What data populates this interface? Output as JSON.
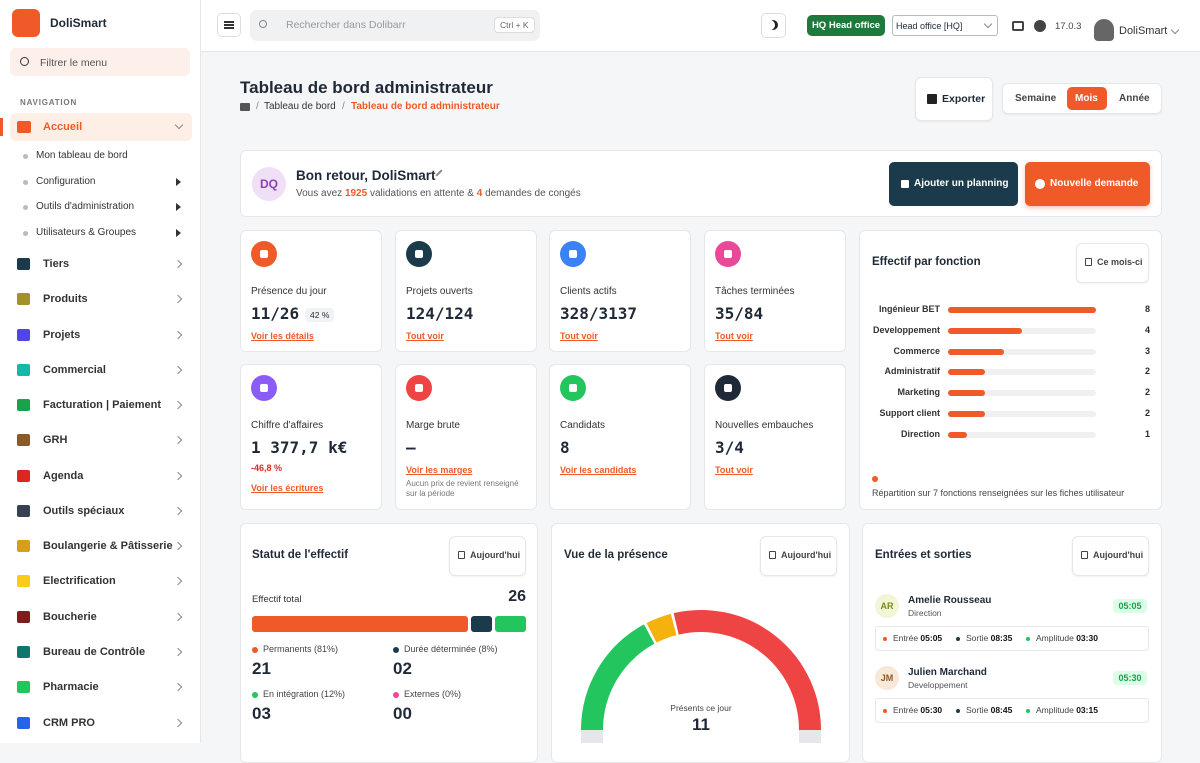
{
  "sidebar": {
    "brand": "DoliSmart",
    "filter_placeholder": "Filtrer le menu",
    "section": "NAVIGATION",
    "active": "Accueil",
    "submenu": [
      "Mon tableau de bord",
      "Configuration",
      "Outils d'administration",
      "Utilisateurs & Groupes"
    ],
    "items": [
      "Tiers",
      "Produits",
      "Projets",
      "Commercial",
      "Facturation | Paiement",
      "GRH",
      "Agenda",
      "Outils spéciaux",
      "Boulangerie & Pâtisserie",
      "Electrification",
      "Boucherie",
      "Bureau de Contrôle",
      "Pharmacie",
      "CRM PRO"
    ]
  },
  "topbar": {
    "search_placeholder": "Rechercher dans Dolibarr",
    "shortcut": "Ctrl + K",
    "entity_badge": "HQ Head office",
    "entity_select": "Head office [HQ]",
    "version": "17.0.3",
    "user": "DoliSmart"
  },
  "header": {
    "title": "Tableau de bord administrateur",
    "breadcrumb": [
      "Tableau de bord",
      "Tableau de bord administrateur"
    ],
    "export": "Exporter",
    "periods": [
      "Semaine",
      "Mois",
      "Année"
    ],
    "active_period": "Mois"
  },
  "welcome": {
    "initials": "DQ",
    "greeting": "Bon retour, DoliSmart",
    "message": [
      "Vous avez",
      "1925",
      "validations en attente &",
      "4",
      "demandes de congés"
    ],
    "buttons": [
      "Ajouter un planning",
      "Nouvelle demande"
    ]
  },
  "stats": [
    {
      "label": "Présence du jour",
      "value": "11/26",
      "badge": "42 %",
      "link": "Voir les détails",
      "color": "#f05a28"
    },
    {
      "label": "Projets ouverts",
      "value": "124/124",
      "link": "Tout voir",
      "color": "#1b3a4b"
    },
    {
      "label": "Clients actifs",
      "value": "328/3137",
      "link": "Tout voir",
      "color": "#3b82f6"
    },
    {
      "label": "Tâches terminées",
      "value": "35/84",
      "link": "Tout voir",
      "color": "#ec4899"
    },
    {
      "label": "Chiffre d'affaires",
      "value": "1 377,7 k€",
      "delta": "-46,8 %",
      "link": "Voir les écritures",
      "color": "#8b5cf6"
    },
    {
      "label": "Marge brute",
      "value": "–",
      "link": "Voir les marges",
      "note": "Aucun prix de revient renseigné sur la période",
      "color": "#ef4444"
    },
    {
      "label": "Candidats",
      "value": "8",
      "link": "Voir les candidats",
      "color": "#22c55e"
    },
    {
      "label": "Nouvelles embauches",
      "value": "3/4",
      "link": "Tout voir",
      "color": "#1f2937"
    }
  ],
  "functions": {
    "title": "Effectif par fonction",
    "button": "Ce mois-ci",
    "color": "#f05a28",
    "categories": [
      "Ingénieur BET",
      "Developpement",
      "Commerce",
      "Administratif",
      "Marketing",
      "Support client",
      "Direction"
    ],
    "values": [
      8,
      4,
      3,
      2,
      2,
      2,
      1
    ],
    "note": "Répartition sur 7 fonctions renseignées sur les fiches utilisateur"
  },
  "status": {
    "title": "Statut de l'effectif",
    "button": "Aujourd'hui",
    "total_label": "Effectif total",
    "total": 26,
    "series": [
      {
        "name": "Permanents (81%)",
        "color": "#f05a28",
        "value": 21,
        "value_label": "21"
      },
      {
        "name": "Durée déterminée (8%)",
        "color": "#1b3a4b",
        "value": 2,
        "value_label": "02"
      },
      {
        "name": "En intégration (12%)",
        "color": "#22c55e",
        "value": 3,
        "value_label": "03"
      },
      {
        "name": "Externes (0%)",
        "color": "#ec4899",
        "value": 0,
        "value_label": "00"
      }
    ]
  },
  "presence": {
    "title": "Vue de la présence",
    "button": "Aujourd'hui",
    "label": "Présents ce jour",
    "value": 11,
    "gauge": {
      "values": [
        9,
        2,
        15
      ],
      "colors": [
        "#22c55e",
        "#f5b20f",
        "#ef4444"
      ]
    }
  },
  "moves": {
    "title": "Entrées et sorties",
    "button": "Aujourd'hui",
    "labels": [
      "Entrée",
      "Sortie",
      "Amplitude"
    ],
    "entries": [
      {
        "initials": "AR",
        "name": "Amelie Rousseau",
        "dept": "Direction",
        "badge": "05:05",
        "in": "05:05",
        "out": "08:35",
        "amp": "03:30"
      },
      {
        "initials": "JM",
        "name": "Julien Marchand",
        "dept": "Developpement",
        "badge": "05:30",
        "in": "05:30",
        "out": "08:45",
        "amp": "03:15"
      }
    ]
  }
}
